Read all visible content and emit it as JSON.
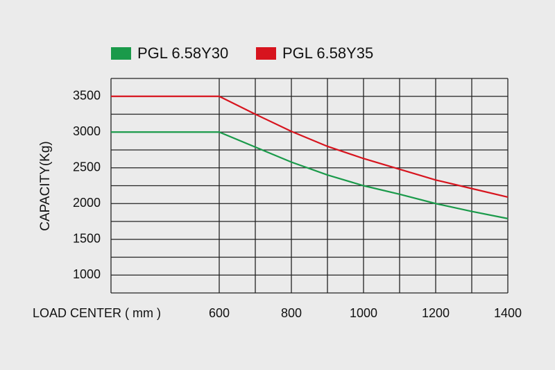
{
  "chart_data": {
    "type": "line",
    "x_label": "LOAD CENTER ( mm )",
    "y_label": "CAPACITY(Kg)",
    "x": [
      300,
      600,
      700,
      800,
      900,
      1000,
      1100,
      1200,
      1300,
      1400
    ],
    "series": [
      {
        "name": "PGL 6.58Y30",
        "color": "#1a9a4a",
        "values": [
          3000,
          3000,
          2790,
          2580,
          2400,
          2250,
          2130,
          2000,
          1890,
          1790
        ]
      },
      {
        "name": "PGL 6.58Y35",
        "color": "#d7141e",
        "values": [
          3500,
          3500,
          3250,
          3010,
          2800,
          2630,
          2480,
          2330,
          2210,
          2090
        ]
      }
    ],
    "xlim": [
      300,
      1400
    ],
    "xticks": [
      600,
      800,
      1000,
      1200,
      1400
    ],
    "x_minor_ticks": [
      300,
      700,
      900,
      1100,
      1300
    ],
    "ylim": [
      750,
      3750
    ],
    "yticks": [
      1000,
      1500,
      2000,
      2500,
      3000,
      3500
    ],
    "y_minor_ticks": [
      750,
      1250,
      1750,
      2250,
      2750,
      3250,
      3750
    ],
    "grid": true,
    "legend": "top"
  }
}
